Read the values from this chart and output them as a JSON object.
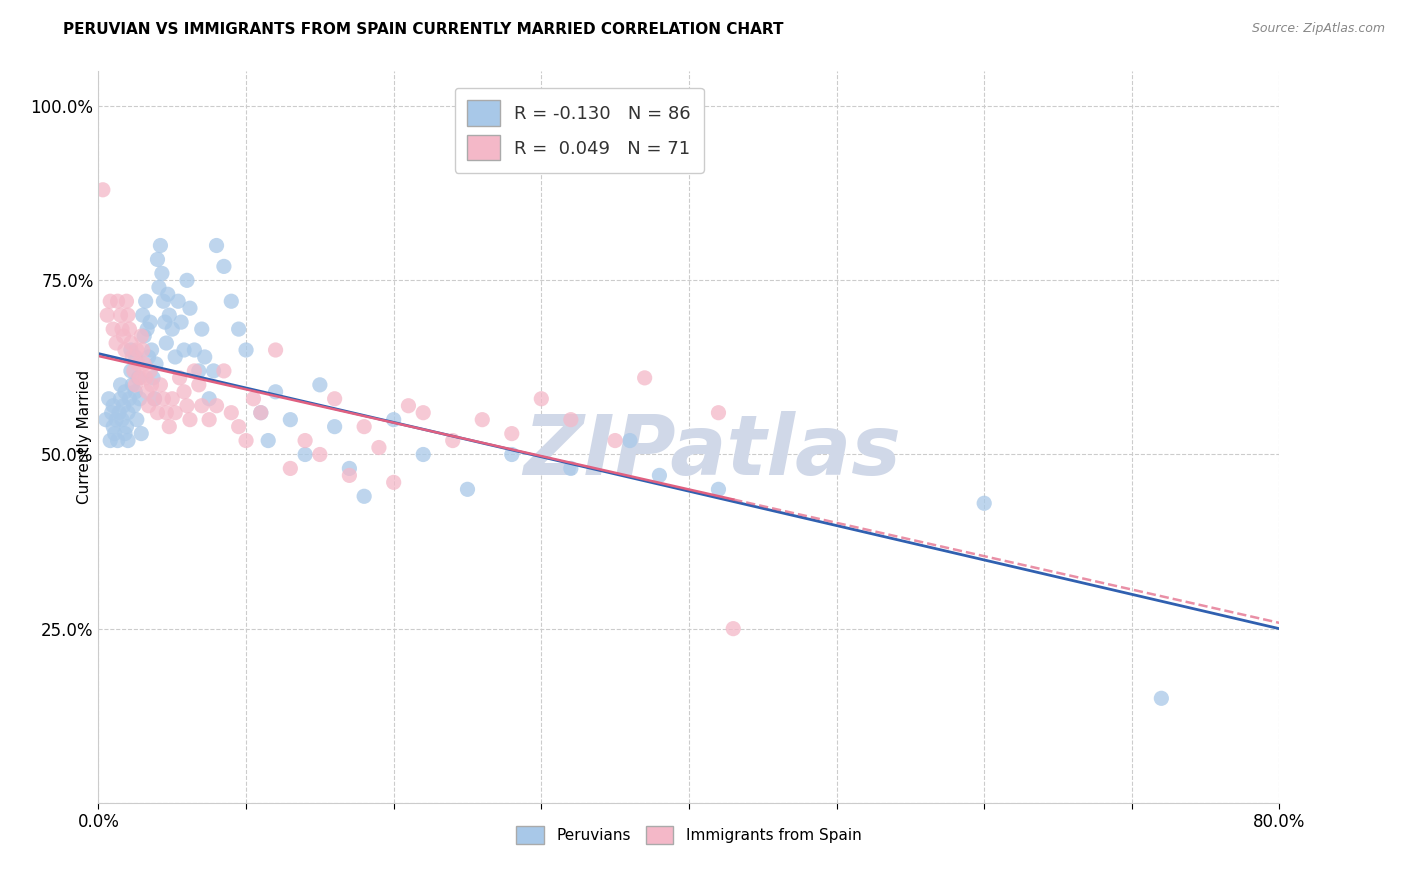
{
  "title": "PERUVIAN VS IMMIGRANTS FROM SPAIN CURRENTLY MARRIED CORRELATION CHART",
  "source": "Source: ZipAtlas.com",
  "ylabel": "Currently Married",
  "xlim": [
    0.0,
    0.8
  ],
  "ylim": [
    0.0,
    1.05
  ],
  "ytick_vals": [
    0.0,
    0.25,
    0.5,
    0.75,
    1.0
  ],
  "xtick_vals": [
    0.0,
    0.1,
    0.2,
    0.3,
    0.4,
    0.5,
    0.6,
    0.7,
    0.8
  ],
  "blue_color": "#a8c8e8",
  "pink_color": "#f4b8c8",
  "blue_line_color": "#3060b0",
  "pink_line_color": "#e06080",
  "watermark_text": "ZIPatlas",
  "watermark_color": "#d0d8e8",
  "legend_blue_r": -0.13,
  "legend_blue_n": 86,
  "legend_pink_r": 0.049,
  "legend_pink_n": 71,
  "blue_scatter_x": [
    0.005,
    0.007,
    0.008,
    0.009,
    0.01,
    0.01,
    0.011,
    0.012,
    0.013,
    0.014,
    0.015,
    0.015,
    0.016,
    0.017,
    0.018,
    0.018,
    0.019,
    0.02,
    0.02,
    0.021,
    0.022,
    0.022,
    0.023,
    0.024,
    0.025,
    0.025,
    0.026,
    0.027,
    0.028,
    0.029,
    0.03,
    0.031,
    0.032,
    0.033,
    0.034,
    0.035,
    0.036,
    0.037,
    0.038,
    0.039,
    0.04,
    0.041,
    0.042,
    0.043,
    0.044,
    0.045,
    0.046,
    0.047,
    0.048,
    0.05,
    0.052,
    0.054,
    0.056,
    0.058,
    0.06,
    0.062,
    0.065,
    0.068,
    0.07,
    0.072,
    0.075,
    0.078,
    0.08,
    0.085,
    0.09,
    0.095,
    0.1,
    0.11,
    0.115,
    0.12,
    0.13,
    0.14,
    0.15,
    0.16,
    0.17,
    0.18,
    0.2,
    0.22,
    0.25,
    0.28,
    0.32,
    0.36,
    0.38,
    0.42,
    0.6,
    0.72
  ],
  "blue_scatter_y": [
    0.55,
    0.58,
    0.52,
    0.56,
    0.54,
    0.57,
    0.53,
    0.55,
    0.52,
    0.56,
    0.6,
    0.58,
    0.55,
    0.57,
    0.53,
    0.59,
    0.54,
    0.56,
    0.52,
    0.58,
    0.62,
    0.65,
    0.6,
    0.57,
    0.64,
    0.59,
    0.55,
    0.61,
    0.58,
    0.53,
    0.7,
    0.67,
    0.72,
    0.68,
    0.64,
    0.69,
    0.65,
    0.61,
    0.58,
    0.63,
    0.78,
    0.74,
    0.8,
    0.76,
    0.72,
    0.69,
    0.66,
    0.73,
    0.7,
    0.68,
    0.64,
    0.72,
    0.69,
    0.65,
    0.75,
    0.71,
    0.65,
    0.62,
    0.68,
    0.64,
    0.58,
    0.62,
    0.8,
    0.77,
    0.72,
    0.68,
    0.65,
    0.56,
    0.52,
    0.59,
    0.55,
    0.5,
    0.6,
    0.54,
    0.48,
    0.44,
    0.55,
    0.5,
    0.45,
    0.5,
    0.48,
    0.52,
    0.47,
    0.45,
    0.43,
    0.15
  ],
  "pink_scatter_x": [
    0.003,
    0.006,
    0.008,
    0.01,
    0.012,
    0.013,
    0.015,
    0.016,
    0.017,
    0.018,
    0.019,
    0.02,
    0.021,
    0.022,
    0.023,
    0.024,
    0.025,
    0.026,
    0.027,
    0.028,
    0.029,
    0.03,
    0.031,
    0.032,
    0.033,
    0.034,
    0.035,
    0.036,
    0.038,
    0.04,
    0.042,
    0.044,
    0.046,
    0.048,
    0.05,
    0.052,
    0.055,
    0.058,
    0.06,
    0.062,
    0.065,
    0.068,
    0.07,
    0.075,
    0.08,
    0.085,
    0.09,
    0.095,
    0.1,
    0.105,
    0.11,
    0.12,
    0.13,
    0.14,
    0.15,
    0.16,
    0.17,
    0.18,
    0.19,
    0.2,
    0.21,
    0.22,
    0.24,
    0.26,
    0.28,
    0.3,
    0.32,
    0.35,
    0.37,
    0.42,
    0.43
  ],
  "pink_scatter_y": [
    0.88,
    0.7,
    0.72,
    0.68,
    0.66,
    0.72,
    0.7,
    0.68,
    0.67,
    0.65,
    0.72,
    0.7,
    0.68,
    0.66,
    0.64,
    0.62,
    0.6,
    0.65,
    0.63,
    0.61,
    0.67,
    0.65,
    0.63,
    0.61,
    0.59,
    0.57,
    0.62,
    0.6,
    0.58,
    0.56,
    0.6,
    0.58,
    0.56,
    0.54,
    0.58,
    0.56,
    0.61,
    0.59,
    0.57,
    0.55,
    0.62,
    0.6,
    0.57,
    0.55,
    0.57,
    0.62,
    0.56,
    0.54,
    0.52,
    0.58,
    0.56,
    0.65,
    0.48,
    0.52,
    0.5,
    0.58,
    0.47,
    0.54,
    0.51,
    0.46,
    0.57,
    0.56,
    0.52,
    0.55,
    0.53,
    0.58,
    0.55,
    0.52,
    0.61,
    0.56,
    0.25
  ]
}
